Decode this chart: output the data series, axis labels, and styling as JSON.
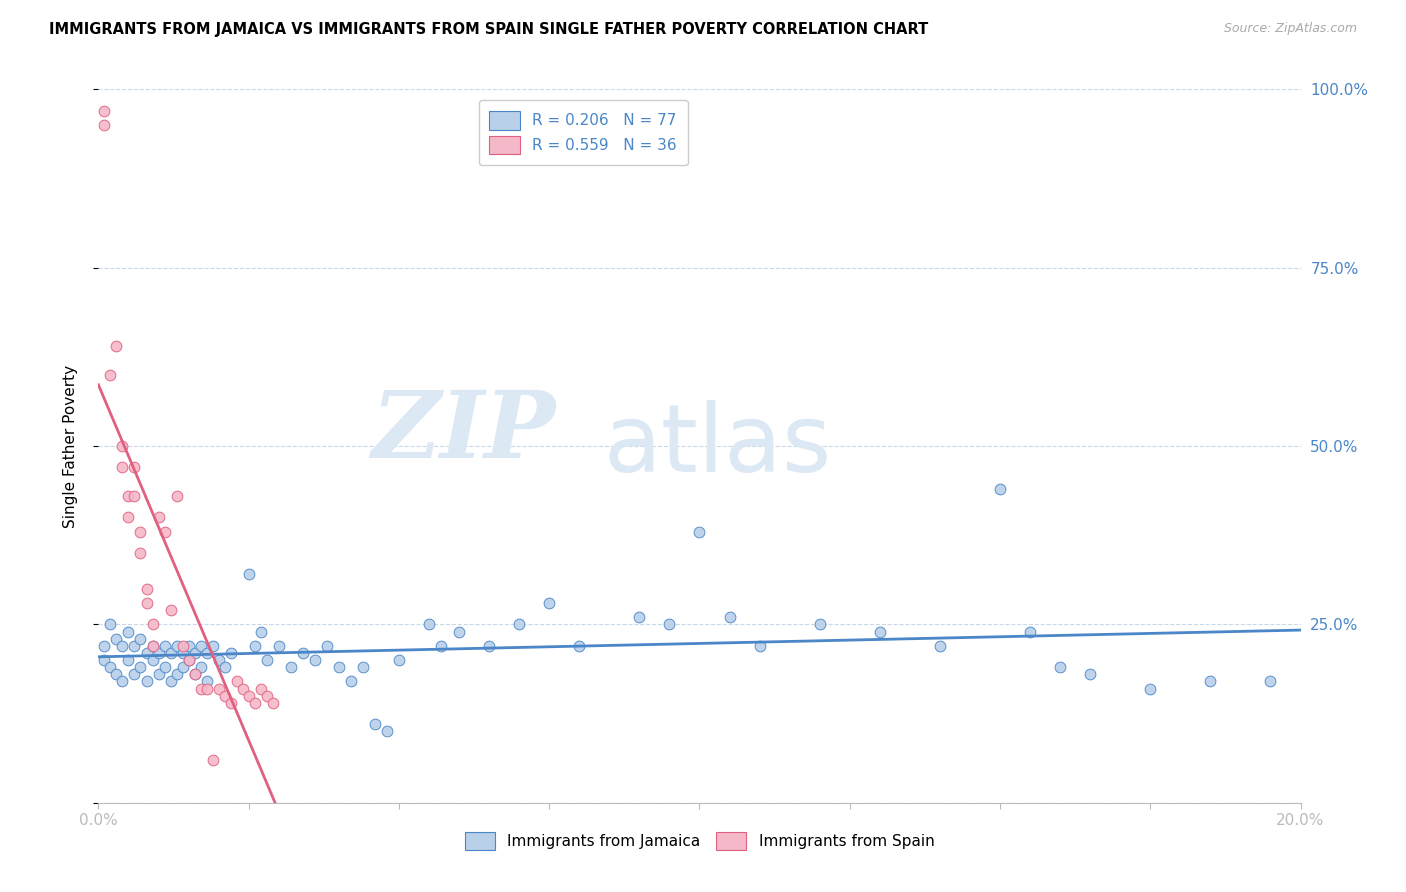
{
  "title": "IMMIGRANTS FROM JAMAICA VS IMMIGRANTS FROM SPAIN SINGLE FATHER POVERTY CORRELATION CHART",
  "source": "Source: ZipAtlas.com",
  "ylabel": "Single Father Poverty",
  "legend_series1": "Immigrants from Jamaica",
  "legend_series2": "Immigrants from Spain",
  "jamaica_color": "#b8d0e8",
  "spain_color": "#f5b8c8",
  "jamaica_line_color": "#4a86c8",
  "spain_line_color": "#e06080",
  "watermark_zip": "ZIP",
  "watermark_atlas": "atlas",
  "jamaica_scatter": [
    [
      0.001,
      0.22
    ],
    [
      0.001,
      0.2
    ],
    [
      0.002,
      0.25
    ],
    [
      0.002,
      0.19
    ],
    [
      0.003,
      0.23
    ],
    [
      0.003,
      0.18
    ],
    [
      0.004,
      0.22
    ],
    [
      0.004,
      0.17
    ],
    [
      0.005,
      0.24
    ],
    [
      0.005,
      0.2
    ],
    [
      0.006,
      0.22
    ],
    [
      0.006,
      0.18
    ],
    [
      0.007,
      0.23
    ],
    [
      0.007,
      0.19
    ],
    [
      0.008,
      0.21
    ],
    [
      0.008,
      0.17
    ],
    [
      0.009,
      0.22
    ],
    [
      0.009,
      0.2
    ],
    [
      0.01,
      0.21
    ],
    [
      0.01,
      0.18
    ],
    [
      0.011,
      0.22
    ],
    [
      0.011,
      0.19
    ],
    [
      0.012,
      0.21
    ],
    [
      0.012,
      0.17
    ],
    [
      0.013,
      0.22
    ],
    [
      0.013,
      0.18
    ],
    [
      0.014,
      0.21
    ],
    [
      0.014,
      0.19
    ],
    [
      0.015,
      0.22
    ],
    [
      0.015,
      0.2
    ],
    [
      0.016,
      0.21
    ],
    [
      0.016,
      0.18
    ],
    [
      0.017,
      0.22
    ],
    [
      0.017,
      0.19
    ],
    [
      0.018,
      0.21
    ],
    [
      0.018,
      0.17
    ],
    [
      0.019,
      0.22
    ],
    [
      0.02,
      0.2
    ],
    [
      0.021,
      0.19
    ],
    [
      0.022,
      0.21
    ],
    [
      0.025,
      0.32
    ],
    [
      0.026,
      0.22
    ],
    [
      0.027,
      0.24
    ],
    [
      0.028,
      0.2
    ],
    [
      0.03,
      0.22
    ],
    [
      0.032,
      0.19
    ],
    [
      0.034,
      0.21
    ],
    [
      0.036,
      0.2
    ],
    [
      0.038,
      0.22
    ],
    [
      0.04,
      0.19
    ],
    [
      0.042,
      0.17
    ],
    [
      0.044,
      0.19
    ],
    [
      0.046,
      0.11
    ],
    [
      0.048,
      0.1
    ],
    [
      0.05,
      0.2
    ],
    [
      0.055,
      0.25
    ],
    [
      0.057,
      0.22
    ],
    [
      0.06,
      0.24
    ],
    [
      0.065,
      0.22
    ],
    [
      0.07,
      0.25
    ],
    [
      0.075,
      0.28
    ],
    [
      0.08,
      0.22
    ],
    [
      0.09,
      0.26
    ],
    [
      0.095,
      0.25
    ],
    [
      0.1,
      0.38
    ],
    [
      0.105,
      0.26
    ],
    [
      0.11,
      0.22
    ],
    [
      0.12,
      0.25
    ],
    [
      0.13,
      0.24
    ],
    [
      0.14,
      0.22
    ],
    [
      0.15,
      0.44
    ],
    [
      0.155,
      0.24
    ],
    [
      0.16,
      0.19
    ],
    [
      0.165,
      0.18
    ],
    [
      0.175,
      0.16
    ],
    [
      0.185,
      0.17
    ],
    [
      0.195,
      0.17
    ]
  ],
  "spain_scatter": [
    [
      0.001,
      0.97
    ],
    [
      0.001,
      0.95
    ],
    [
      0.002,
      0.6
    ],
    [
      0.003,
      0.64
    ],
    [
      0.004,
      0.5
    ],
    [
      0.004,
      0.47
    ],
    [
      0.005,
      0.43
    ],
    [
      0.005,
      0.4
    ],
    [
      0.006,
      0.47
    ],
    [
      0.006,
      0.43
    ],
    [
      0.007,
      0.38
    ],
    [
      0.007,
      0.35
    ],
    [
      0.008,
      0.3
    ],
    [
      0.008,
      0.28
    ],
    [
      0.009,
      0.25
    ],
    [
      0.009,
      0.22
    ],
    [
      0.01,
      0.4
    ],
    [
      0.011,
      0.38
    ],
    [
      0.012,
      0.27
    ],
    [
      0.013,
      0.43
    ],
    [
      0.014,
      0.22
    ],
    [
      0.015,
      0.2
    ],
    [
      0.016,
      0.18
    ],
    [
      0.017,
      0.16
    ],
    [
      0.018,
      0.16
    ],
    [
      0.019,
      0.06
    ],
    [
      0.02,
      0.16
    ],
    [
      0.021,
      0.15
    ],
    [
      0.022,
      0.14
    ],
    [
      0.023,
      0.17
    ],
    [
      0.024,
      0.16
    ],
    [
      0.025,
      0.15
    ],
    [
      0.026,
      0.14
    ],
    [
      0.027,
      0.16
    ],
    [
      0.028,
      0.15
    ],
    [
      0.029,
      0.14
    ]
  ],
  "xlim": [
    0,
    0.2
  ],
  "ylim": [
    0,
    1.0
  ],
  "xticks": [
    0.0,
    0.025,
    0.05,
    0.075,
    0.1,
    0.125,
    0.15,
    0.175,
    0.2
  ],
  "yticks": [
    0.0,
    0.25,
    0.5,
    0.75,
    1.0
  ],
  "ytick_labels": [
    "",
    "25.0%",
    "50.0%",
    "75.0%",
    "100.0%"
  ]
}
